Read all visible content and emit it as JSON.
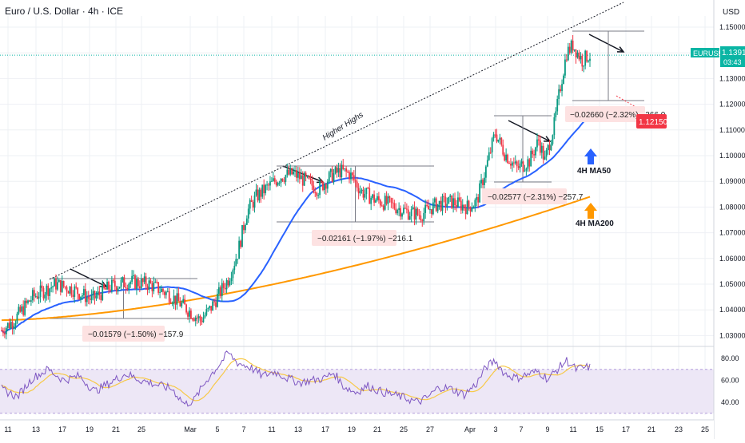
{
  "header": {
    "title": "Euro / U.S. Dollar · 4h · ICE"
  },
  "price_axis": {
    "currency": "USD"
  },
  "current_price": {
    "symbol": "EURUSD",
    "price": "1.13910",
    "countdown": "03:43",
    "color": "#0ab5a4"
  },
  "target_price": {
    "value": "1.12150",
    "color": "#f23645"
  },
  "annotations": {
    "trendline_label": "Higher Highs",
    "ma50_label": "4H MA50",
    "ma200_label": "4H MA200"
  },
  "measurements": [
    {
      "text": "−0.01579 (−1.50%) −157.9"
    },
    {
      "text": "−0.02161 (−1.97%) −216.1"
    },
    {
      "text": "−0.02577 (−2.31%) −257.7"
    },
    {
      "text": "−0.02660 (−2.32%) −266.0"
    }
  ],
  "colors": {
    "up": "#089981",
    "down": "#f23645",
    "ma50": "#2962ff",
    "ma200": "#ff9800",
    "rsi": "#7e57c2",
    "rsi_ma": "#f7c948",
    "rsi_band": "#ede7f6",
    "grid": "#eef0f4"
  },
  "chart_data": {
    "type": "candlestick",
    "y_ticks": [
      "1.15000",
      "1.14000",
      "1.13000",
      "1.12000",
      "1.11000",
      "1.10000",
      "1.09000",
      "1.08000",
      "1.07000",
      "1.06000",
      "1.05000",
      "1.04000",
      "1.03000"
    ],
    "x_ticks": [
      "11",
      "13",
      "17",
      "19",
      "21",
      "25",
      "Mar",
      "5",
      "7",
      "11",
      "13",
      "17",
      "19",
      "21",
      "25",
      "27",
      "Apr",
      "3",
      "7",
      "9",
      "11",
      "15",
      "17",
      "21",
      "23",
      "25"
    ],
    "rsi_ticks": [
      "80.00",
      "60.00",
      "40.00"
    ],
    "price_range": [
      1.025,
      1.155
    ],
    "rsi_range": [
      30,
      90
    ],
    "key_levels": {
      "last": 1.1391,
      "target": 1.1215
    },
    "ohlc_anchors": [
      [
        0,
        1.032
      ],
      [
        8,
        1.036
      ],
      [
        20,
        1.045
      ],
      [
        35,
        1.05
      ],
      [
        46,
        1.048
      ],
      [
        58,
        1.044
      ],
      [
        70,
        1.049
      ],
      [
        82,
        1.051
      ],
      [
        95,
        1.05
      ],
      [
        108,
        1.046
      ],
      [
        118,
        1.041
      ],
      [
        128,
        1.036
      ],
      [
        134,
        1.04
      ],
      [
        140,
        1.046
      ],
      [
        146,
        1.052
      ],
      [
        152,
        1.062
      ],
      [
        158,
        1.078
      ],
      [
        164,
        1.084
      ],
      [
        172,
        1.088
      ],
      [
        180,
        1.092
      ],
      [
        188,
        1.093
      ],
      [
        196,
        1.09
      ],
      [
        204,
        1.087
      ],
      [
        212,
        1.092
      ],
      [
        218,
        1.094
      ],
      [
        224,
        1.093
      ],
      [
        232,
        1.086
      ],
      [
        240,
        1.083
      ],
      [
        250,
        1.081
      ],
      [
        262,
        1.078
      ],
      [
        270,
        1.077
      ],
      [
        280,
        1.081
      ],
      [
        290,
        1.082
      ],
      [
        300,
        1.08
      ],
      [
        306,
        1.082
      ],
      [
        312,
        1.095
      ],
      [
        318,
        1.109
      ],
      [
        324,
        1.101
      ],
      [
        332,
        1.095
      ],
      [
        340,
        1.098
      ],
      [
        346,
        1.106
      ],
      [
        350,
        1.098
      ],
      [
        356,
        1.112
      ],
      [
        360,
        1.127
      ],
      [
        364,
        1.14
      ],
      [
        368,
        1.143
      ],
      [
        374,
        1.137
      ],
      [
        378,
        1.139
      ]
    ],
    "rsi_anchors": [
      [
        0,
        52
      ],
      [
        10,
        45
      ],
      [
        20,
        62
      ],
      [
        30,
        70
      ],
      [
        40,
        60
      ],
      [
        50,
        64
      ],
      [
        60,
        50
      ],
      [
        70,
        58
      ],
      [
        80,
        66
      ],
      [
        90,
        60
      ],
      [
        100,
        56
      ],
      [
        110,
        52
      ],
      [
        118,
        38
      ],
      [
        124,
        42
      ],
      [
        132,
        60
      ],
      [
        140,
        74
      ],
      [
        146,
        85
      ],
      [
        152,
        76
      ],
      [
        160,
        72
      ],
      [
        168,
        64
      ],
      [
        176,
        68
      ],
      [
        184,
        62
      ],
      [
        192,
        58
      ],
      [
        200,
        60
      ],
      [
        208,
        62
      ],
      [
        214,
        67
      ],
      [
        220,
        55
      ],
      [
        228,
        49
      ],
      [
        236,
        55
      ],
      [
        244,
        50
      ],
      [
        252,
        47
      ],
      [
        260,
        44
      ],
      [
        268,
        40
      ],
      [
        274,
        44
      ],
      [
        282,
        54
      ],
      [
        290,
        52
      ],
      [
        298,
        47
      ],
      [
        306,
        57
      ],
      [
        312,
        72
      ],
      [
        318,
        78
      ],
      [
        324,
        66
      ],
      [
        332,
        62
      ],
      [
        340,
        66
      ],
      [
        346,
        68
      ],
      [
        352,
        61
      ],
      [
        358,
        70
      ],
      [
        364,
        78
      ],
      [
        370,
        70
      ],
      [
        378,
        72
      ]
    ]
  }
}
